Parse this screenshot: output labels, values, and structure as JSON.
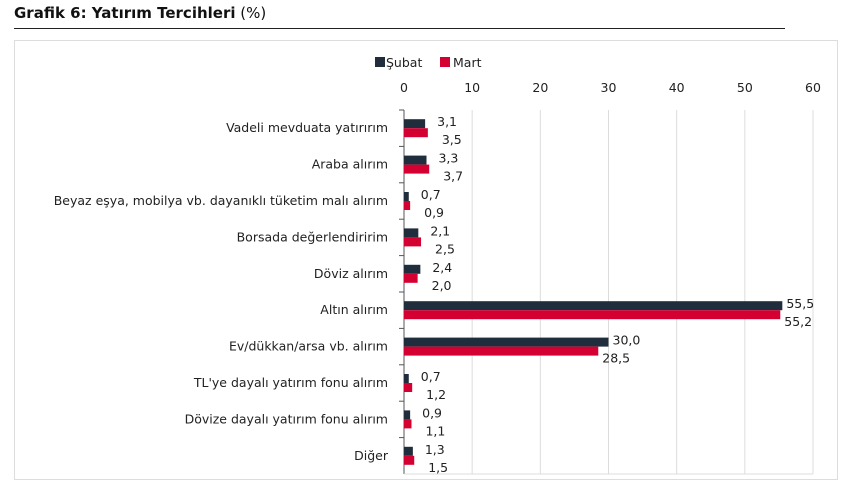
{
  "title": {
    "main": "Grafik 6: Yatırım Tercihleri",
    "unit": "(%)"
  },
  "chart_data": {
    "type": "bar",
    "orientation": "horizontal",
    "title": "Grafik 6: Yatırım Tercihleri (%)",
    "categories": [
      "Vadeli mevduata yatırırım",
      "Araba alırım",
      "Beyaz eşya, mobilya vb. dayanıklı tüketim malı alırım",
      "Borsada değerlendiririm",
      "Döviz alırım",
      "Altın alırım",
      "Ev/dükkan/arsa vb. alırım",
      "TL'ye dayalı yatırım fonu alırım",
      "Dövize dayalı yatırım fonu alırım",
      "Diğer"
    ],
    "series": [
      {
        "name": "Şubat",
        "color": "#1f2d3d",
        "values": [
          3.1,
          3.3,
          0.7,
          2.1,
          2.4,
          55.5,
          30.0,
          0.7,
          0.9,
          1.3
        ]
      },
      {
        "name": "Mart",
        "color": "#d50032",
        "values": [
          3.5,
          3.7,
          0.9,
          2.5,
          2.0,
          55.2,
          28.5,
          1.2,
          1.1,
          1.5
        ]
      }
    ],
    "xlim": [
      0,
      60
    ],
    "xticks": [
      0,
      10,
      20,
      30,
      40,
      50,
      60
    ],
    "grid": true,
    "legend": "top",
    "xaxis_position": "top",
    "decimal_separator": ","
  }
}
